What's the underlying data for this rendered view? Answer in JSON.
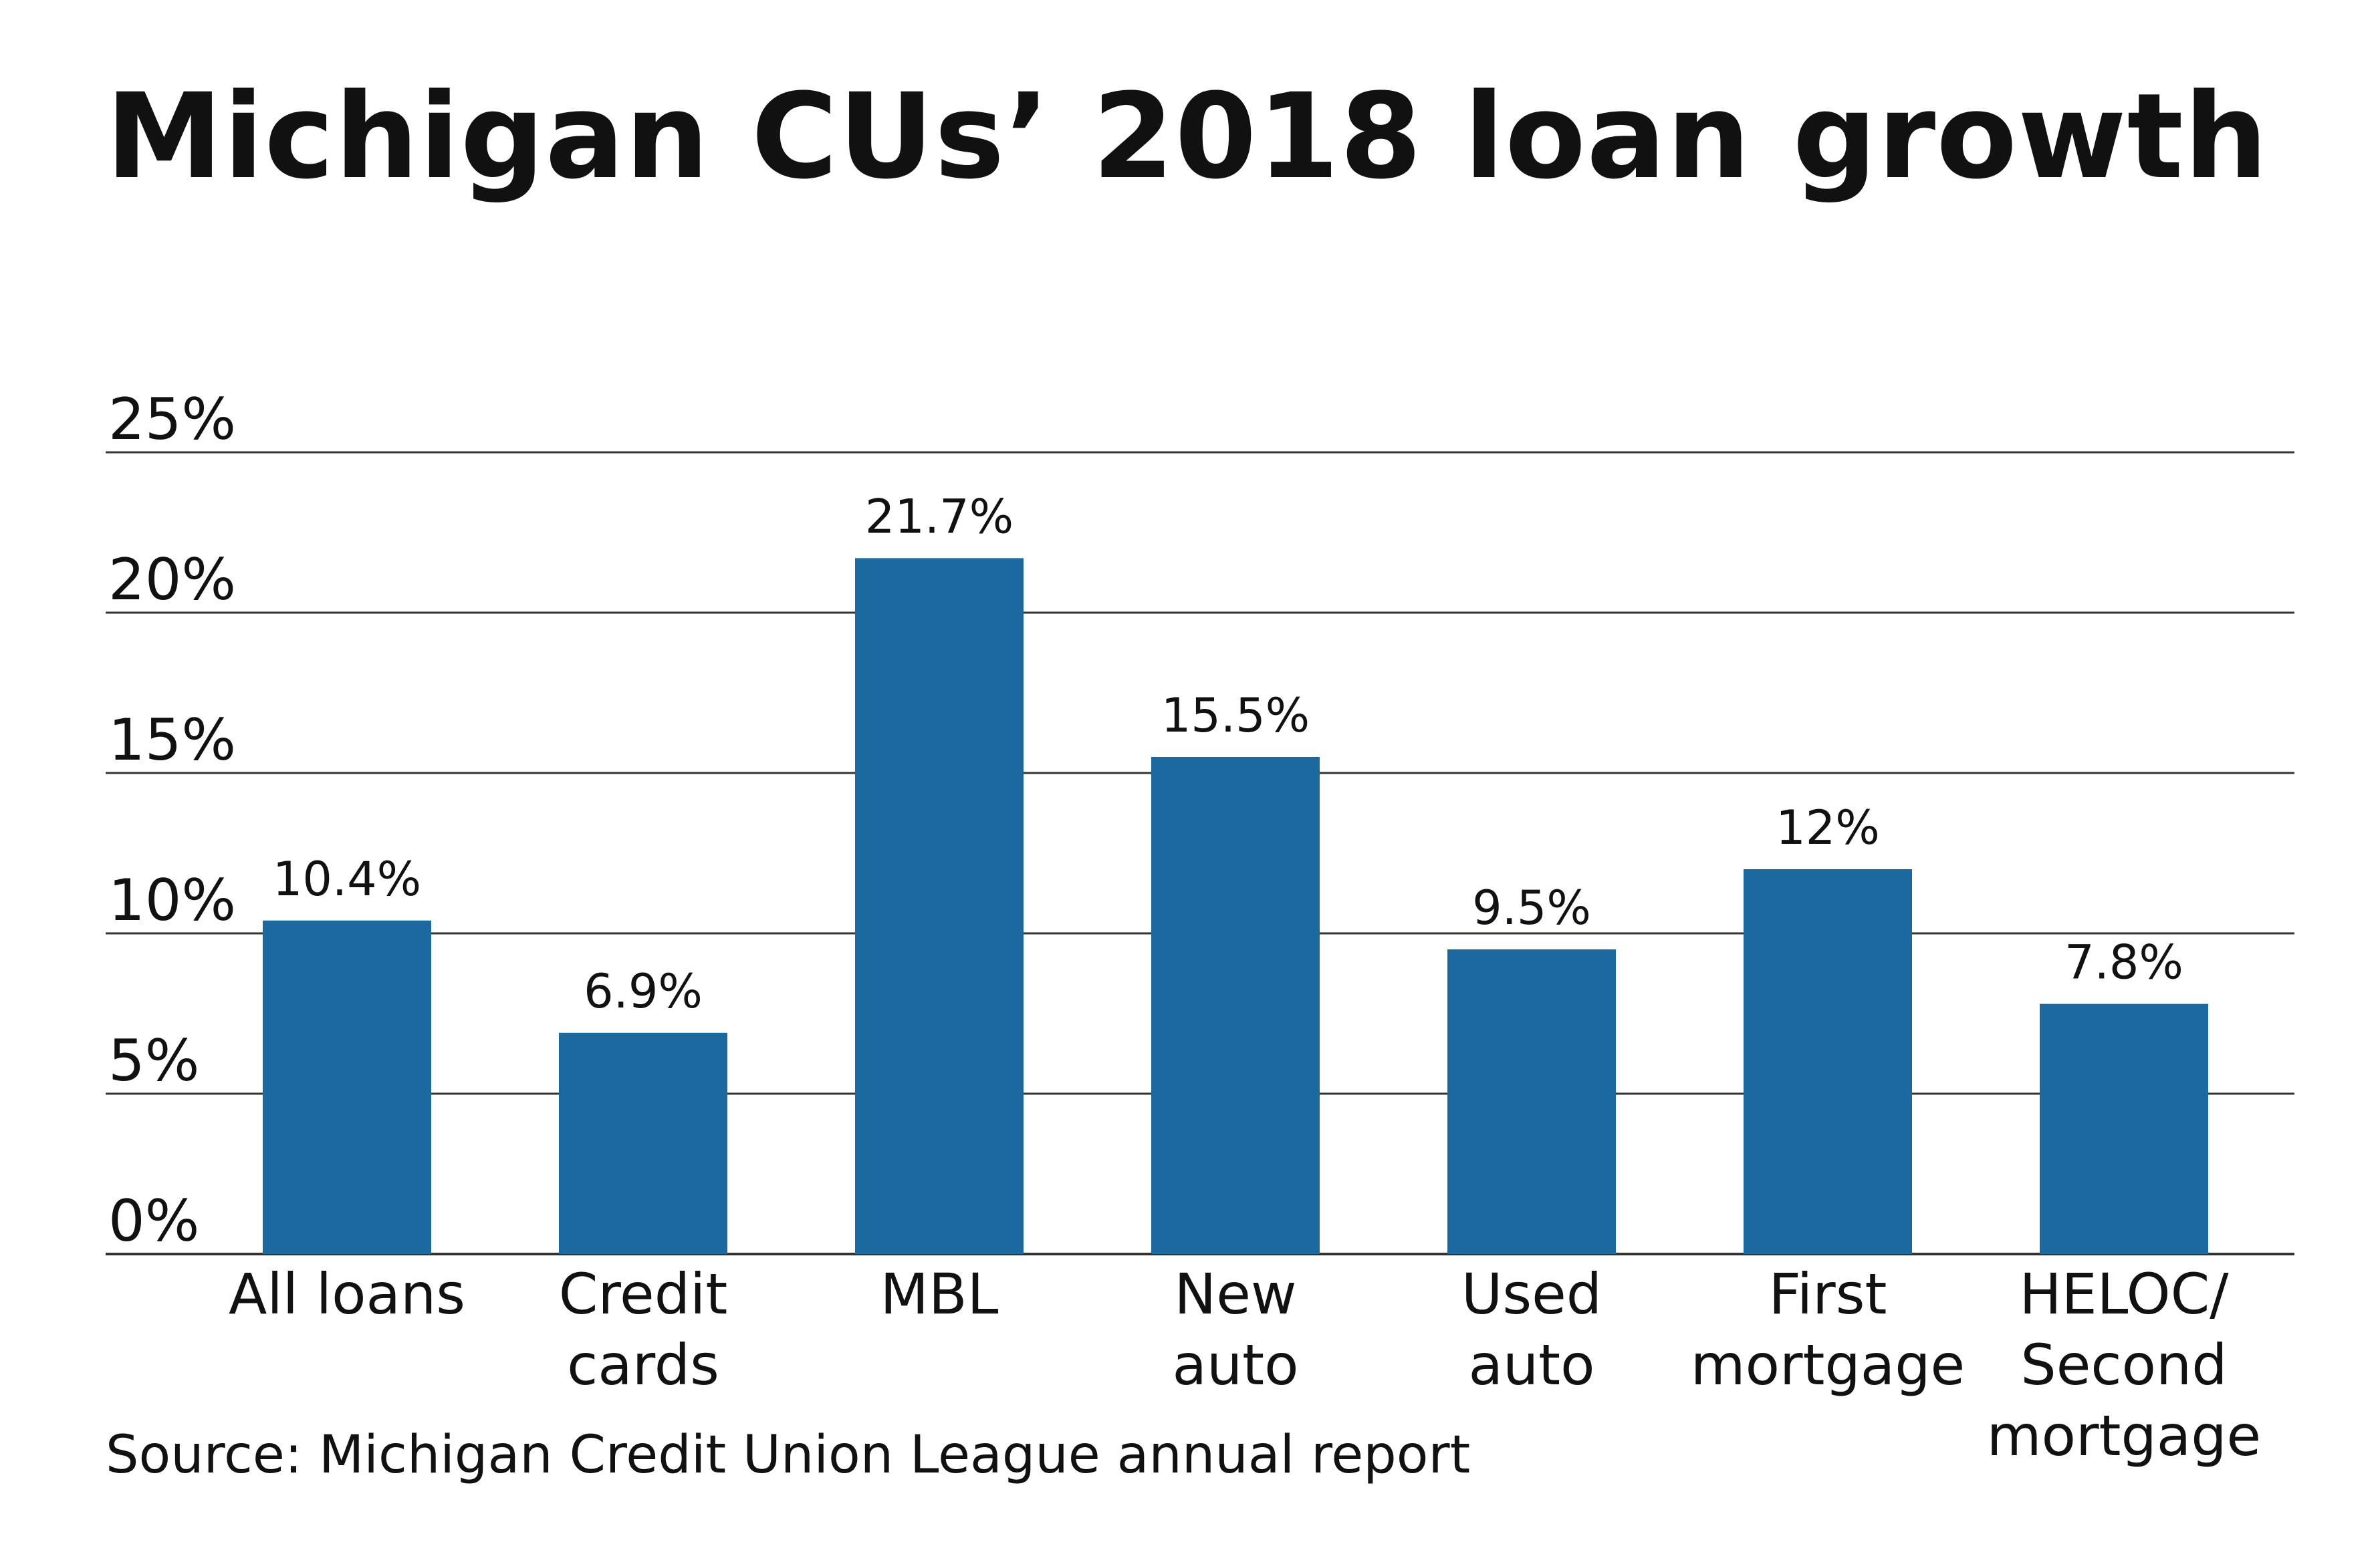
{
  "chart_data": {
    "type": "bar",
    "title": "Michigan CUs’ 2018 loan growth",
    "source": "Source: Michigan Credit Union League annual report",
    "categories": [
      [
        "All loans"
      ],
      [
        "Credit",
        "cards"
      ],
      [
        "MBL"
      ],
      [
        "New",
        "auto"
      ],
      [
        "Used",
        "auto"
      ],
      [
        "First",
        "mortgage"
      ],
      [
        "HELOC/",
        "Second",
        "mortgage"
      ]
    ],
    "values": [
      10.4,
      6.9,
      21.7,
      15.5,
      9.5,
      12,
      7.8
    ],
    "data_labels": [
      "10.4%",
      "6.9%",
      "21.7%",
      "15.5%",
      "9.5%",
      "12%",
      "7.8%"
    ],
    "ylim": [
      0,
      25
    ],
    "yticks": [
      0,
      5,
      10,
      15,
      20,
      25
    ],
    "ytick_labels": [
      "0%",
      "5%",
      "10%",
      "15%",
      "20%",
      "25%"
    ],
    "grid": true,
    "legend": "none",
    "bar_color": "#1c69a0",
    "grid_color": "#333333"
  }
}
